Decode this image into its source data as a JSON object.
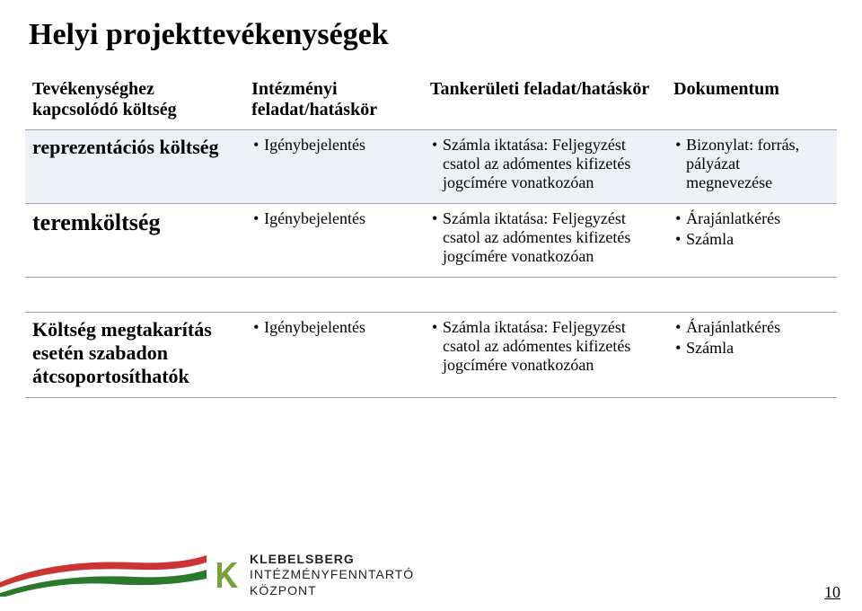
{
  "page": {
    "title": "Helyi projekttevékenységek",
    "number": "10"
  },
  "table": {
    "columns": [
      "Tevékenységhez kapcsolódó költség",
      "Intézményi feladat/hatáskör",
      "Tankerületi feladat/hatáskör",
      "Dokumentum"
    ],
    "rows": [
      {
        "label": "reprezentációs költség",
        "label_class": "rowlabel",
        "c1": [
          "Igénybejelentés"
        ],
        "c2": [
          "Számla iktatása: Feljegyzést csatol az adómentes kifizetés jogcímére vonatkozóan"
        ],
        "c3": [
          "Bizonylat: forrás, pályázat megnevezése"
        ]
      },
      {
        "label": "teremköltség",
        "label_class": "bigrowlabel",
        "c1": [
          "Igénybejelentés"
        ],
        "c2": [
          "Számla iktatása: Feljegyzést csatol az adómentes kifizetés jogcímére vonatkozóan"
        ],
        "c3": [
          "Árajánlatkérés",
          "Számla"
        ]
      },
      {
        "spacer": true
      },
      {
        "label": "Költség megtakarítás esetén szabadon átcsoportosíthatók",
        "label_class": "rowlabel",
        "c1": [
          "Igénybejelentés"
        ],
        "c2": [
          "Számla iktatása: Feljegyzést csatol az adómentes kifizetés jogcímére vonatkozóan"
        ],
        "c3": [
          "Árajánlatkérés",
          "Számla"
        ]
      }
    ],
    "row_bg_odd": "#eef1f5",
    "row_bg_even": "#ffffff",
    "border_color": "#9aa6b2"
  },
  "footer": {
    "ribbon_colors": [
      "#cc3333",
      "#ffffff",
      "#2b7a2b"
    ],
    "logo": {
      "line1": "KLEBELSBERG",
      "line2": "INTÉZMÉNYFENNTARTÓ",
      "line3": "KÖZPONT",
      "mark_color": "#7aa23a"
    }
  }
}
